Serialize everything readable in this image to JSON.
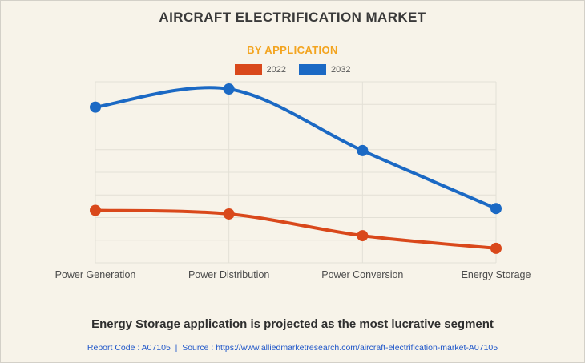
{
  "header": {
    "title": "AIRCRAFT ELECTRIFICATION MARKET",
    "subtitle": "BY APPLICATION"
  },
  "legend": {
    "items": [
      {
        "label": "2022",
        "color": "#d9481b"
      },
      {
        "label": "2032",
        "color": "#1b69c4"
      }
    ]
  },
  "chart_data": {
    "type": "line",
    "title": "AIRCRAFT ELECTRIFICATION MARKET",
    "subtitle": "BY APPLICATION",
    "categories": [
      "Power Generation",
      "Power Distribution",
      "Power Conversion",
      "Energy Storage"
    ],
    "series": [
      {
        "name": "2022",
        "color": "#d9481b",
        "values": [
          29,
          27,
          15,
          8
        ]
      },
      {
        "name": "2032",
        "color": "#1b69c4",
        "values": [
          86,
          96,
          62,
          30
        ]
      }
    ],
    "xlabel": "",
    "ylabel": "",
    "ylim": [
      0,
      100
    ],
    "y_axis_visible": false,
    "values_are_estimates": true,
    "grid": true,
    "legend_position": "top",
    "line_style": "smooth",
    "marker": "circle"
  },
  "caption": {
    "text": "Energy Storage application is projected as the most lucrative segment"
  },
  "footer": {
    "text": "Report Code : A07105  |  Source : https://www.alliedmarketresearch.com/aircraft-electrification-market-A07105"
  },
  "colors": {
    "background": "#f7f3e9",
    "gridline": "#e3e0d6",
    "axis_label": "#4c4c4c",
    "title": "#3a3a3a",
    "subtitle_accent": "#f3a41f",
    "footer_link": "#2057c9"
  }
}
